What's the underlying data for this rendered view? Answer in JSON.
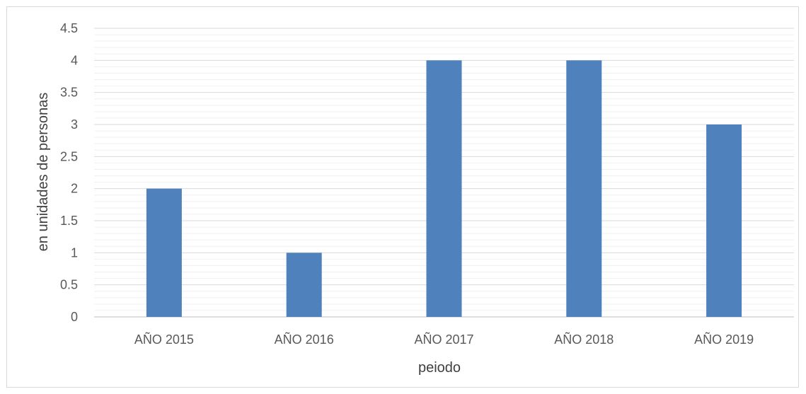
{
  "chart_data": {
    "type": "bar",
    "categories": [
      "AÑO 2015",
      "AÑO 2016",
      "AÑO 2017",
      "AÑO 2018",
      "AÑO 2019"
    ],
    "values": [
      2,
      1,
      4,
      4,
      3
    ],
    "title": "",
    "xlabel": "peiodo",
    "ylabel": "en unidades de personas",
    "ylim": [
      0,
      4.5
    ],
    "yticks": [
      "0",
      "0.5",
      "1",
      "1.5",
      "2",
      "2.5",
      "3",
      "3.5",
      "4",
      "4.5"
    ],
    "grid": true,
    "bar_color": "#4f81bd",
    "legend": "none"
  }
}
